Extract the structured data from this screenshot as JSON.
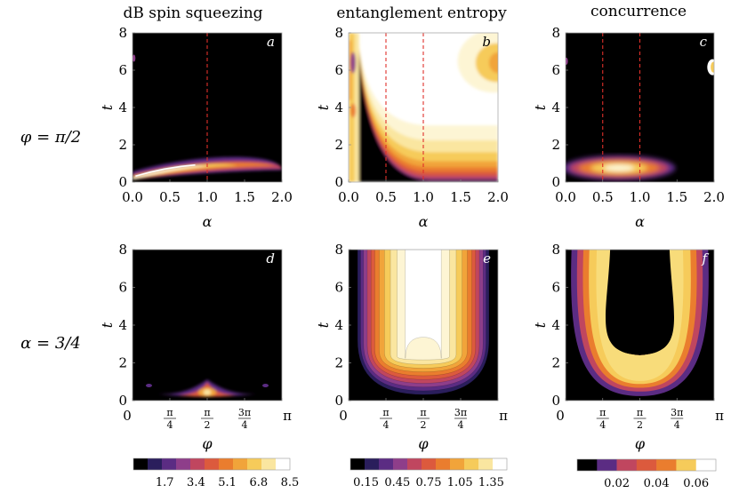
{
  "chart_data": {
    "type": "heatmap",
    "columns": [
      "dB spin squeezing",
      "entanglement entropy",
      "concurrence"
    ],
    "rows": [
      "φ = π/2",
      "α = 3/4"
    ],
    "panels": [
      {
        "id": "a",
        "row": 0,
        "col": 0,
        "xlabel": "α",
        "ylabel": "t",
        "xlim": [
          0,
          2
        ],
        "ylim": [
          0,
          8
        ],
        "xticks": [
          "0.0",
          "0.5",
          "1.0",
          "1.5",
          "2.0"
        ],
        "xtick_values": [
          0,
          0.5,
          1,
          1.5,
          2
        ],
        "yticks": [
          "0",
          "2",
          "4",
          "6",
          "8"
        ],
        "ytick_values": [
          0,
          2,
          4,
          6,
          8
        ],
        "dashed_lines_x": [
          1.0
        ]
      },
      {
        "id": "b",
        "row": 0,
        "col": 1,
        "xlabel": "α",
        "ylabel": "t",
        "xlim": [
          0,
          2
        ],
        "ylim": [
          0,
          8
        ],
        "xticks": [
          "0.0",
          "0.5",
          "1.0",
          "1.5",
          "2.0"
        ],
        "xtick_values": [
          0,
          0.5,
          1,
          1.5,
          2
        ],
        "yticks": [
          "0",
          "2",
          "4",
          "6",
          "8"
        ],
        "ytick_values": [
          0,
          2,
          4,
          6,
          8
        ],
        "dashed_lines_x": [
          0.5,
          1.0
        ]
      },
      {
        "id": "c",
        "row": 0,
        "col": 2,
        "xlabel": "α",
        "ylabel": "t",
        "xlim": [
          0,
          2
        ],
        "ylim": [
          0,
          8
        ],
        "xticks": [
          "0.0",
          "0.5",
          "1.0",
          "1.5",
          "2.0"
        ],
        "xtick_values": [
          0,
          0.5,
          1,
          1.5,
          2
        ],
        "yticks": [
          "0",
          "2",
          "4",
          "6",
          "8"
        ],
        "ytick_values": [
          0,
          2,
          4,
          6,
          8
        ],
        "dashed_lines_x": [
          0.5,
          1.0
        ]
      },
      {
        "id": "d",
        "row": 1,
        "col": 0,
        "xlabel": "φ",
        "ylabel": "t",
        "xlim": [
          0,
          3.14159
        ],
        "ylim": [
          0,
          8
        ],
        "xticks": [
          "0",
          "π/4",
          "π/2",
          "3π/4",
          "π"
        ],
        "xtick_values": [
          0,
          0.7854,
          1.5708,
          2.3562,
          3.14159
        ],
        "yticks": [
          "0",
          "2",
          "4",
          "6",
          "8"
        ],
        "ytick_values": [
          0,
          2,
          4,
          6,
          8
        ],
        "dashed_lines_x": []
      },
      {
        "id": "e",
        "row": 1,
        "col": 1,
        "xlabel": "φ",
        "ylabel": "t",
        "xlim": [
          0,
          3.14159
        ],
        "ylim": [
          0,
          8
        ],
        "xticks": [
          "0",
          "π/4",
          "π/2",
          "3π/4",
          "π"
        ],
        "xtick_values": [
          0,
          0.7854,
          1.5708,
          2.3562,
          3.14159
        ],
        "yticks": [
          "0",
          "2",
          "4",
          "6",
          "8"
        ],
        "ytick_values": [
          0,
          2,
          4,
          6,
          8
        ],
        "dashed_lines_x": []
      },
      {
        "id": "f",
        "row": 1,
        "col": 2,
        "xlabel": "φ",
        "ylabel": "t",
        "xlim": [
          0,
          3.14159
        ],
        "ylim": [
          0,
          8
        ],
        "xticks": [
          "0",
          "π/4",
          "π/2",
          "3π/4",
          "π"
        ],
        "xtick_values": [
          0,
          0.7854,
          1.5708,
          2.3562,
          3.14159
        ],
        "yticks": [
          "0",
          "2",
          "4",
          "6",
          "8"
        ],
        "ytick_values": [
          0,
          2,
          4,
          6,
          8
        ],
        "dashed_lines_x": []
      }
    ],
    "colorbars": [
      {
        "column": 0,
        "ticks": [
          "1.7",
          "3.4",
          "5.1",
          "6.8",
          "8.5"
        ],
        "max": 8.5,
        "levels": 10
      },
      {
        "column": 1,
        "ticks": [
          "0.15",
          "0.45",
          "0.75",
          "1.05",
          "1.35"
        ],
        "max": 1.5,
        "levels": 10
      },
      {
        "column": 2,
        "ticks": [
          "0.02",
          "0.04",
          "0.06"
        ],
        "max": 0.07,
        "levels": 7
      }
    ],
    "colors": {
      "palette": [
        "#000000",
        "#2a1e5c",
        "#5b2c83",
        "#8e3e8a",
        "#c0465f",
        "#dc5a3d",
        "#ea7d2e",
        "#f1a43a",
        "#f6cb5a",
        "#fae6a0",
        "#fdf5d4",
        "#ffffff"
      ],
      "dashed_line": "#e0302a",
      "frame": "#aaaaaa"
    }
  }
}
